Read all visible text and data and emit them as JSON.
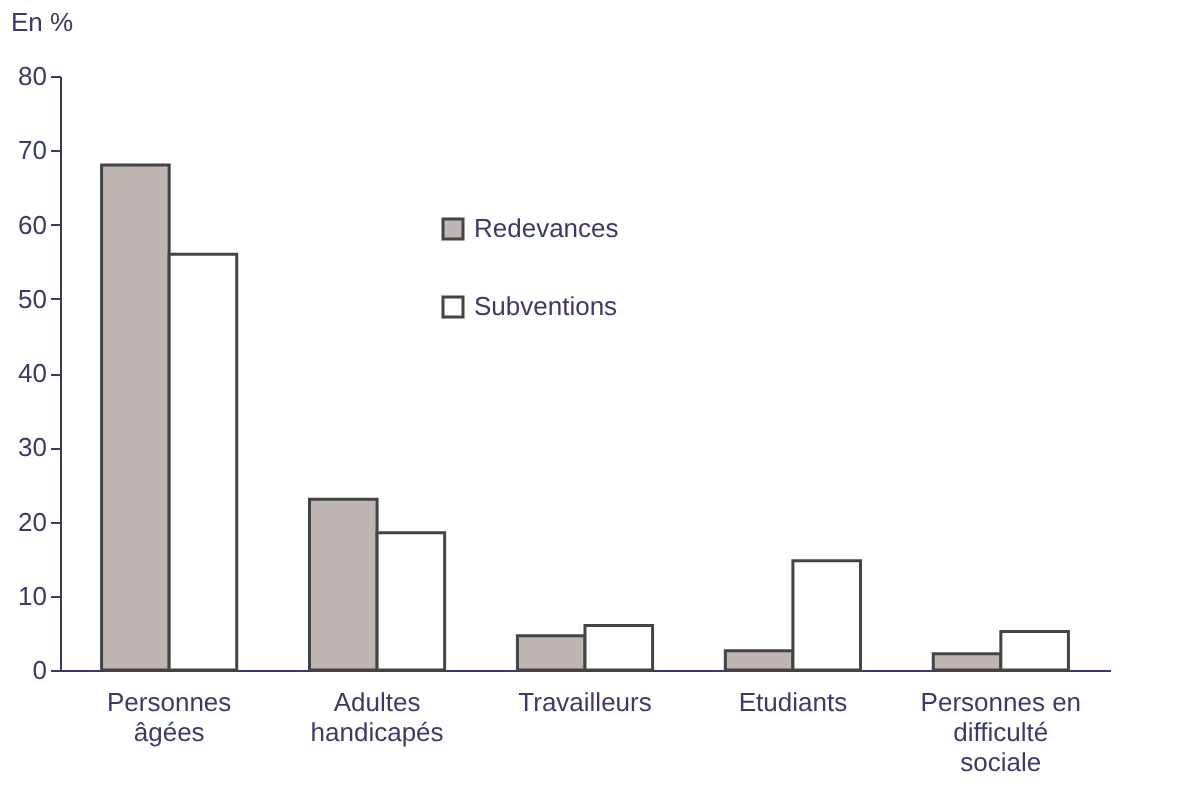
{
  "chart_data": {
    "type": "bar",
    "ylabel": "En %",
    "categories": [
      "Personnes\nâgées",
      "Adultes\nhandicapés",
      "Travailleurs",
      "Etudiants",
      "Personnes en\ndifficulté\nsociale"
    ],
    "series": [
      {
        "name": "Redevances",
        "color": "#bfb5b2",
        "values": [
          68,
          23,
          4.6,
          2.6,
          2.2
        ]
      },
      {
        "name": "Subventions",
        "color": "#ffffff",
        "values": [
          56,
          18.5,
          6,
          14.7,
          5.2
        ]
      }
    ],
    "ylim": [
      0,
      80
    ],
    "yticks": [
      0,
      10,
      20,
      30,
      40,
      50,
      60,
      70,
      80
    ],
    "grid": false,
    "legend": "center"
  }
}
